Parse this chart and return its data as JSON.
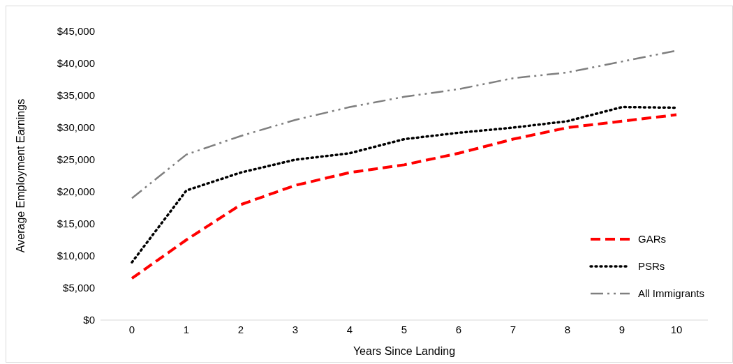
{
  "chart_data": {
    "type": "line",
    "xlabel": "Years Since Landing",
    "ylabel": "Average Employment Earnings",
    "categories": [
      "0",
      "1",
      "2",
      "3",
      "4",
      "5",
      "6",
      "7",
      "8",
      "9",
      "10"
    ],
    "series": [
      {
        "name": "GARs",
        "color": "#ff0000",
        "line_style": "dashed",
        "values": [
          6500,
          12500,
          18000,
          21000,
          23000,
          24200,
          26000,
          28200,
          30000,
          31000,
          32000
        ]
      },
      {
        "name": "PSRs",
        "color": "#000000",
        "line_style": "dotted",
        "values": [
          9000,
          20200,
          23000,
          25000,
          26000,
          28200,
          29200,
          30000,
          31000,
          33200,
          33100
        ]
      },
      {
        "name": "All Immigrants",
        "color": "#7f7f7f",
        "line_style": "dashdot",
        "values": [
          19000,
          25800,
          28700,
          31200,
          33200,
          34800,
          36000,
          37700,
          38600,
          40300,
          42000
        ]
      }
    ],
    "ylim": [
      0,
      45000
    ],
    "yticks": [
      {
        "value": 0,
        "label": "$0"
      },
      {
        "value": 5000,
        "label": "$5,000"
      },
      {
        "value": 10000,
        "label": "$10,000"
      },
      {
        "value": 15000,
        "label": "$15,000"
      },
      {
        "value": 20000,
        "label": "$20,000"
      },
      {
        "value": 25000,
        "label": "$25,000"
      },
      {
        "value": 30000,
        "label": "$30,000"
      },
      {
        "value": 35000,
        "label": "$35,000"
      },
      {
        "value": 40000,
        "label": "$40,000"
      },
      {
        "value": 45000,
        "label": "$45,000"
      }
    ],
    "grid": false,
    "legend": "bottom right",
    "marker": "none"
  }
}
